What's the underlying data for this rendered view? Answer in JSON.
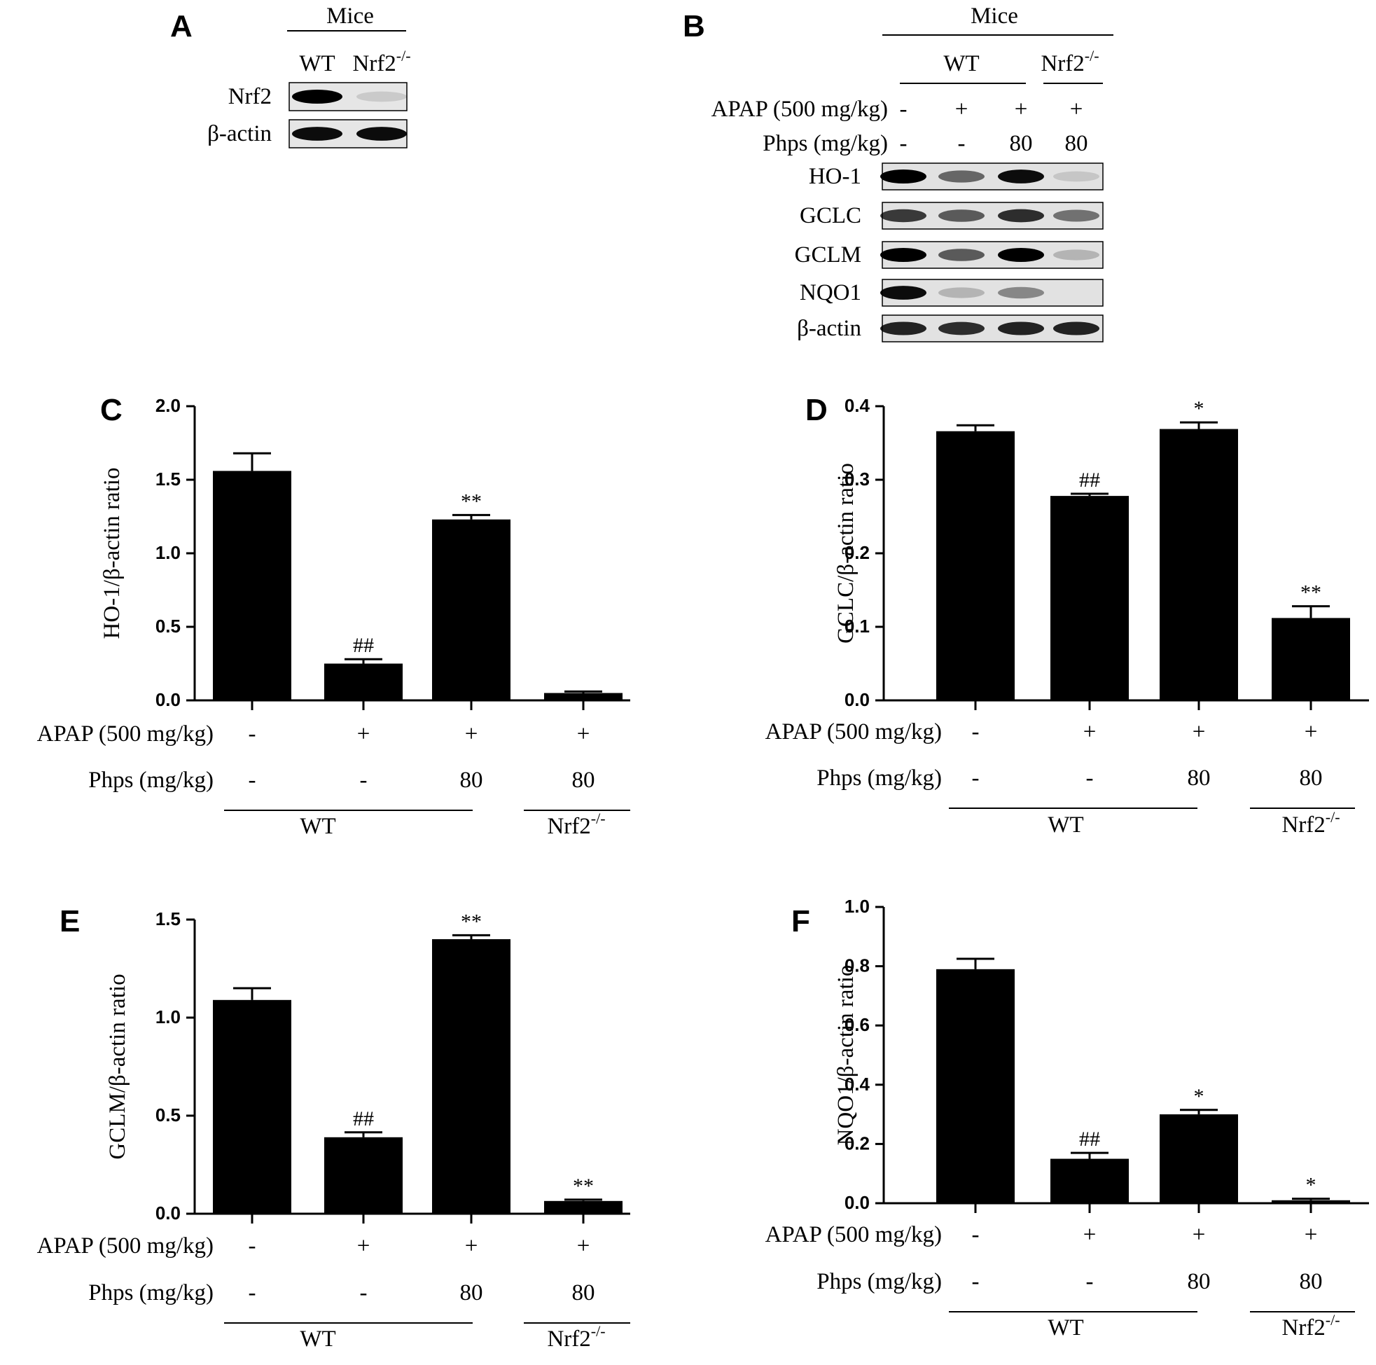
{
  "figure": {
    "panels": [
      {
        "letter": "A",
        "header": "Mice",
        "columns": [
          "WT",
          "Nrf2"
        ],
        "column_superscripts": [
          "",
          "-/-"
        ],
        "blots": [
          {
            "label": "Nrf2",
            "band_intensity": [
              1.0,
              0.12
            ]
          },
          {
            "label": "β-actin",
            "band_intensity": [
              0.95,
              0.95
            ]
          }
        ]
      },
      {
        "letter": "B",
        "header": "Mice",
        "groups": [
          {
            "label": "WT",
            "superscript": "",
            "lanes": 3
          },
          {
            "label": "Nrf2",
            "superscript": "-/-",
            "lanes": 1
          }
        ],
        "treatments": [
          {
            "label": "APAP (500 mg/kg)",
            "values": [
              "-",
              "+",
              "+",
              "+"
            ]
          },
          {
            "label": "Phps (mg/kg)",
            "values": [
              "-",
              "-",
              "80",
              "80"
            ]
          }
        ],
        "blots": [
          {
            "label": "HO-1",
            "band_intensity": [
              1.0,
              0.55,
              0.95,
              0.12
            ]
          },
          {
            "label": "GCLC",
            "band_intensity": [
              0.75,
              0.6,
              0.8,
              0.5
            ]
          },
          {
            "label": "GCLM",
            "band_intensity": [
              1.0,
              0.6,
              1.0,
              0.2
            ]
          },
          {
            "label": "NQO1",
            "band_intensity": [
              0.95,
              0.2,
              0.4,
              0.0
            ]
          },
          {
            "label": "β-actin",
            "band_intensity": [
              0.85,
              0.8,
              0.85,
              0.85
            ]
          }
        ]
      }
    ]
  },
  "conditions": {
    "apap_label": "APAP (500 mg/kg)",
    "apap": [
      "-",
      "+",
      "+",
      "+"
    ],
    "phps_label": "Phps (mg/kg)",
    "phps": [
      "-",
      "-",
      "80",
      "80"
    ],
    "groups": [
      {
        "label": "WT",
        "superscript": "",
        "bars": [
          0,
          2
        ]
      },
      {
        "label": "Nrf2",
        "superscript": "-/-",
        "bars": [
          3,
          3
        ]
      }
    ]
  },
  "chart_data": [
    {
      "panel": "C",
      "type": "bar",
      "ylabel": "HO-1/β-actin ratio",
      "ylim": [
        0,
        2.0
      ],
      "yticks": [
        "0.0",
        "0.5",
        "1.0",
        "1.5",
        "2.0"
      ],
      "values": [
        1.56,
        0.25,
        1.23,
        0.05
      ],
      "errors": [
        0.12,
        0.03,
        0.03,
        0.01
      ],
      "annotations": [
        "",
        "##",
        "**",
        ""
      ]
    },
    {
      "panel": "D",
      "type": "bar",
      "ylabel": "GCLC/β-actin ratio",
      "ylim": [
        0,
        0.4
      ],
      "yticks": [
        "0.0",
        "0.1",
        "0.2",
        "0.3",
        "0.4"
      ],
      "values": [
        0.366,
        0.278,
        0.369,
        0.112
      ],
      "errors": [
        0.008,
        0.003,
        0.009,
        0.016
      ],
      "annotations": [
        "",
        "##",
        "*",
        "**"
      ]
    },
    {
      "panel": "E",
      "type": "bar",
      "ylabel": "GCLM/β-actin ratio",
      "ylim": [
        0,
        1.5
      ],
      "yticks": [
        "0.0",
        "0.5",
        "1.0",
        "1.5"
      ],
      "values": [
        1.09,
        0.39,
        1.4,
        0.065
      ],
      "errors": [
        0.06,
        0.025,
        0.02,
        0.007
      ],
      "annotations": [
        "",
        "##",
        "**",
        "**"
      ]
    },
    {
      "panel": "F",
      "type": "bar",
      "ylabel": "NQO1/β-actin ratio",
      "ylim": [
        0,
        1.0
      ],
      "yticks": [
        "0.0",
        "0.2",
        "0.4",
        "0.6",
        "0.8",
        "1.0"
      ],
      "values": [
        0.79,
        0.15,
        0.3,
        0.01
      ],
      "errors": [
        0.035,
        0.02,
        0.015,
        0.005
      ],
      "annotations": [
        "",
        "##",
        "*",
        "*"
      ]
    }
  ]
}
